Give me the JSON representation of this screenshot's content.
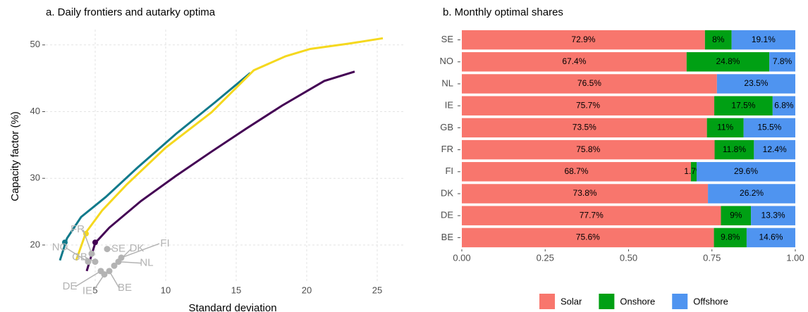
{
  "chart_data": [
    {
      "type": "line",
      "title": "a. Daily frontiers and autarky optima",
      "xlabel": "Standard deviation",
      "ylabel": "Capacity factor (%)",
      "xlim": [
        1.5,
        27
      ],
      "ylim": [
        14.5,
        52.3
      ],
      "xticks": [
        5,
        10,
        15,
        20,
        25
      ],
      "yticks": [
        20,
        30,
        40,
        50
      ],
      "grid": true,
      "series": [
        {
          "color": "#117a8b",
          "x": [
            2.5,
            3.0,
            4.0,
            5.75,
            8.0,
            10.75,
            13.5,
            16.0
          ],
          "values": [
            17.7,
            21.0,
            24.2,
            27.2,
            31.6,
            36.7,
            41.4,
            45.8
          ],
          "dot": {
            "x": 2.85,
            "y": 20.4
          }
        },
        {
          "color": "#f5d81e",
          "x": [
            3.65,
            4.35,
            5.5,
            7.25,
            10.0,
            13.25,
            16.25,
            18.5,
            20.25,
            23.0,
            25.4
          ],
          "values": [
            17.7,
            21.9,
            25.2,
            29.1,
            34.6,
            39.9,
            46.2,
            48.3,
            49.4,
            50.2,
            51.0
          ],
          "dot": {
            "x": 4.35,
            "y": 21.7
          }
        },
        {
          "color": "#440154",
          "x": [
            4.4,
            5.0,
            6.0,
            8.25,
            10.75,
            13.25,
            15.75,
            18.25,
            21.25,
            23.4
          ],
          "values": [
            16.1,
            20.3,
            22.6,
            26.6,
            30.4,
            34.0,
            37.5,
            40.9,
            44.6,
            46.0
          ],
          "dot": {
            "x": 5.0,
            "y": 20.4
          }
        }
      ],
      "points": {
        "color": "#b3b3b3",
        "labels": [
          "SE",
          "NO",
          "FR",
          "GB",
          "DE",
          "IE",
          "BE",
          "NL",
          "DK",
          "FI"
        ],
        "x": [
          5.85,
          4.5,
          4.75,
          5.0,
          5.4,
          5.65,
          6.0,
          6.65,
          6.35,
          6.85
        ],
        "y": [
          19.4,
          17.5,
          18.7,
          17.5,
          16.1,
          15.6,
          16.1,
          17.5,
          16.9,
          18.1
        ]
      }
    },
    {
      "type": "bar",
      "orientation": "horizontal",
      "stacked": true,
      "title": "b. Monthly optimal shares",
      "categories": [
        "SE",
        "NO",
        "NL",
        "IE",
        "GB",
        "FR",
        "FI",
        "DK",
        "DE",
        "BE"
      ],
      "xlim": [
        0,
        1
      ],
      "xticks": [
        {
          "value": 0,
          "label": "0.00"
        },
        {
          "value": 0.25,
          "label": "0.25"
        },
        {
          "value": 0.5,
          "label": "0.50"
        },
        {
          "value": 0.75,
          "label": "0.75"
        },
        {
          "value": 1,
          "label": "1.00"
        }
      ],
      "legend": "bottom",
      "series": [
        {
          "name": "Solar",
          "color": "#f8766d",
          "values": [
            0.729,
            0.674,
            0.765,
            0.757,
            0.735,
            0.758,
            0.687,
            0.738,
            0.777,
            0.756
          ],
          "value_labels": [
            "72.9%",
            "67.4%",
            "76.5%",
            "75.7%",
            "73.5%",
            "75.8%",
            "68.7%",
            "73.8%",
            "77.7%",
            "75.6%"
          ]
        },
        {
          "name": "Onshore",
          "color": "#00a014",
          "values": [
            0.08,
            0.248,
            0,
            0.175,
            0.11,
            0.118,
            0.017,
            0,
            0.09,
            0.098
          ],
          "value_labels": [
            "8%",
            "24.8%",
            null,
            "17.5%",
            "11%",
            "11.8%",
            "1.7%",
            null,
            "9%",
            "9.8%"
          ]
        },
        {
          "name": "Offshore",
          "color": "#4f94f0",
          "values": [
            0.191,
            0.078,
            0.235,
            0.068,
            0.155,
            0.124,
            0.296,
            0.262,
            0.133,
            0.146
          ],
          "value_labels": [
            "19.1%",
            "7.8%",
            "23.5%",
            "6.8%",
            "15.5%",
            "12.4%",
            "29.6%",
            "26.2%",
            "13.3%",
            "14.6%"
          ]
        }
      ]
    }
  ]
}
